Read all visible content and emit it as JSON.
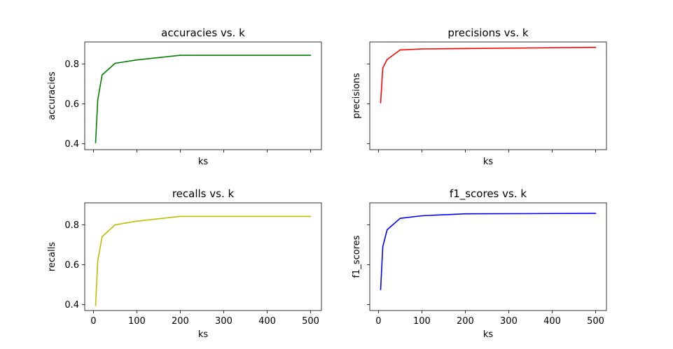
{
  "chart_data": [
    {
      "type": "line",
      "title": "accuracies vs. k",
      "xlabel": "ks",
      "ylabel": "accuracies",
      "color": "#008000",
      "x": [
        5,
        10,
        20,
        50,
        100,
        200,
        500
      ],
      "values": [
        0.405,
        0.62,
        0.745,
        0.803,
        0.82,
        0.843,
        0.843
      ],
      "xlim": [
        -20,
        525
      ],
      "ylim": [
        0.37,
        0.91
      ],
      "xticks": [
        "0",
        "100",
        "200",
        "300",
        "400",
        "500"
      ],
      "yticks": [
        "0.4",
        "0.6",
        "0.8"
      ],
      "show_xtick_labels": false,
      "show_ytick_labels": true,
      "grid": false
    },
    {
      "type": "line",
      "title": "precisions vs. k",
      "xlabel": "ks",
      "ylabel": "precisions",
      "color": "#ff0000",
      "x": [
        5,
        10,
        20,
        50,
        100,
        200,
        500
      ],
      "values": [
        0.605,
        0.78,
        0.822,
        0.87,
        0.875,
        0.877,
        0.883
      ],
      "xlim": [
        -20,
        525
      ],
      "ylim": [
        0.37,
        0.91
      ],
      "xticks": [
        "0",
        "100",
        "200",
        "300",
        "400",
        "500"
      ],
      "yticks": [
        "0.4",
        "0.6",
        "0.8"
      ],
      "show_xtick_labels": false,
      "show_ytick_labels": false,
      "grid": false
    },
    {
      "type": "line",
      "title": "recalls vs. k",
      "xlabel": "ks",
      "ylabel": "recalls",
      "color": "#bfbf00",
      "x": [
        5,
        10,
        20,
        50,
        100,
        200,
        500
      ],
      "values": [
        0.395,
        0.62,
        0.74,
        0.8,
        0.818,
        0.842,
        0.842
      ],
      "xlim": [
        -20,
        525
      ],
      "ylim": [
        0.37,
        0.91
      ],
      "xticks": [
        "0",
        "100",
        "200",
        "300",
        "400",
        "500"
      ],
      "yticks": [
        "0.4",
        "0.6",
        "0.8"
      ],
      "show_xtick_labels": true,
      "show_ytick_labels": true,
      "grid": false
    },
    {
      "type": "line",
      "title": "f1_scores vs. k",
      "xlabel": "ks",
      "ylabel": "f1_scores",
      "color": "#0000ff",
      "x": [
        5,
        10,
        20,
        50,
        100,
        200,
        500
      ],
      "values": [
        0.475,
        0.69,
        0.775,
        0.832,
        0.845,
        0.855,
        0.857
      ],
      "xlim": [
        -20,
        525
      ],
      "ylim": [
        0.37,
        0.91
      ],
      "xticks": [
        "0",
        "100",
        "200",
        "300",
        "400",
        "500"
      ],
      "yticks": [
        "0.4",
        "0.6",
        "0.8"
      ],
      "show_xtick_labels": true,
      "show_ytick_labels": false,
      "grid": false
    }
  ]
}
